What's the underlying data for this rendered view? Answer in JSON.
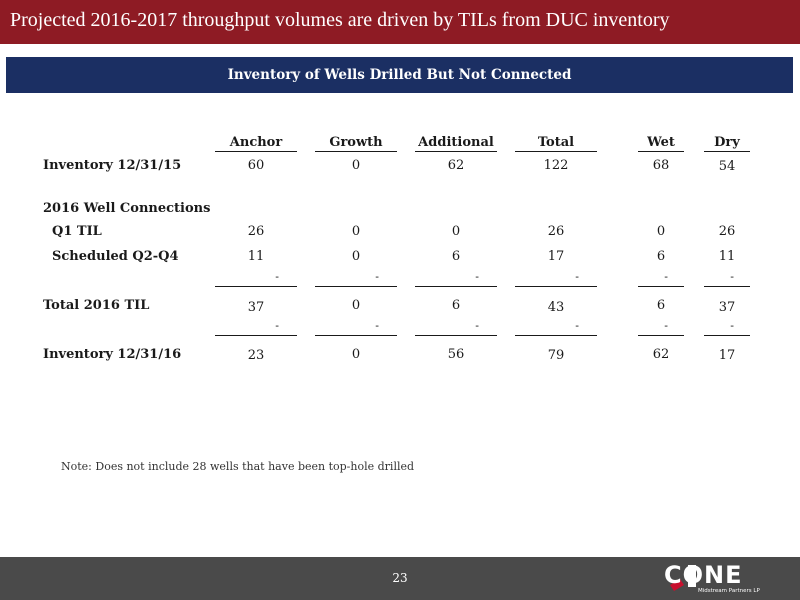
{
  "title": "Projected 2016-2017 throughput volumes are driven by TILs from DUC inventory",
  "section": "Inventory of Wells Drilled But Not Connected",
  "columns": [
    "Anchor",
    "Growth",
    "Additional",
    "Total",
    "Wet",
    "Dry"
  ],
  "rows": {
    "inventory_1215": {
      "label": "Inventory 12/31/15",
      "values": [
        "60",
        "0",
        "62",
        "122",
        "68",
        "54"
      ]
    },
    "connections_header": {
      "label": "2016 Well Connections"
    },
    "q1_til": {
      "label": "Q1 TIL",
      "values": [
        "26",
        "0",
        "0",
        "26",
        "0",
        "26"
      ]
    },
    "scheduled": {
      "label": "Scheduled Q2-Q4",
      "values": [
        "11",
        "0",
        "6",
        "17",
        "6",
        "11"
      ]
    },
    "total_til": {
      "label": "Total 2016 TIL",
      "values": [
        "37",
        "0",
        "6",
        "43",
        "6",
        "37"
      ]
    },
    "inventory_1216": {
      "label": "Inventory 12/31/16",
      "values": [
        "23",
        "0",
        "56",
        "79",
        "62",
        "17"
      ]
    }
  },
  "dash": "-",
  "note": "Note: Does not include 28 wells that have been top-hole drilled",
  "page_number": "23",
  "logo": {
    "word": "CONE",
    "tagline": "Midstream Partners LP"
  },
  "colors": {
    "title_bar": "#8e1b24",
    "section_banner": "#1b2f63",
    "footer": "#4a4a4a"
  }
}
